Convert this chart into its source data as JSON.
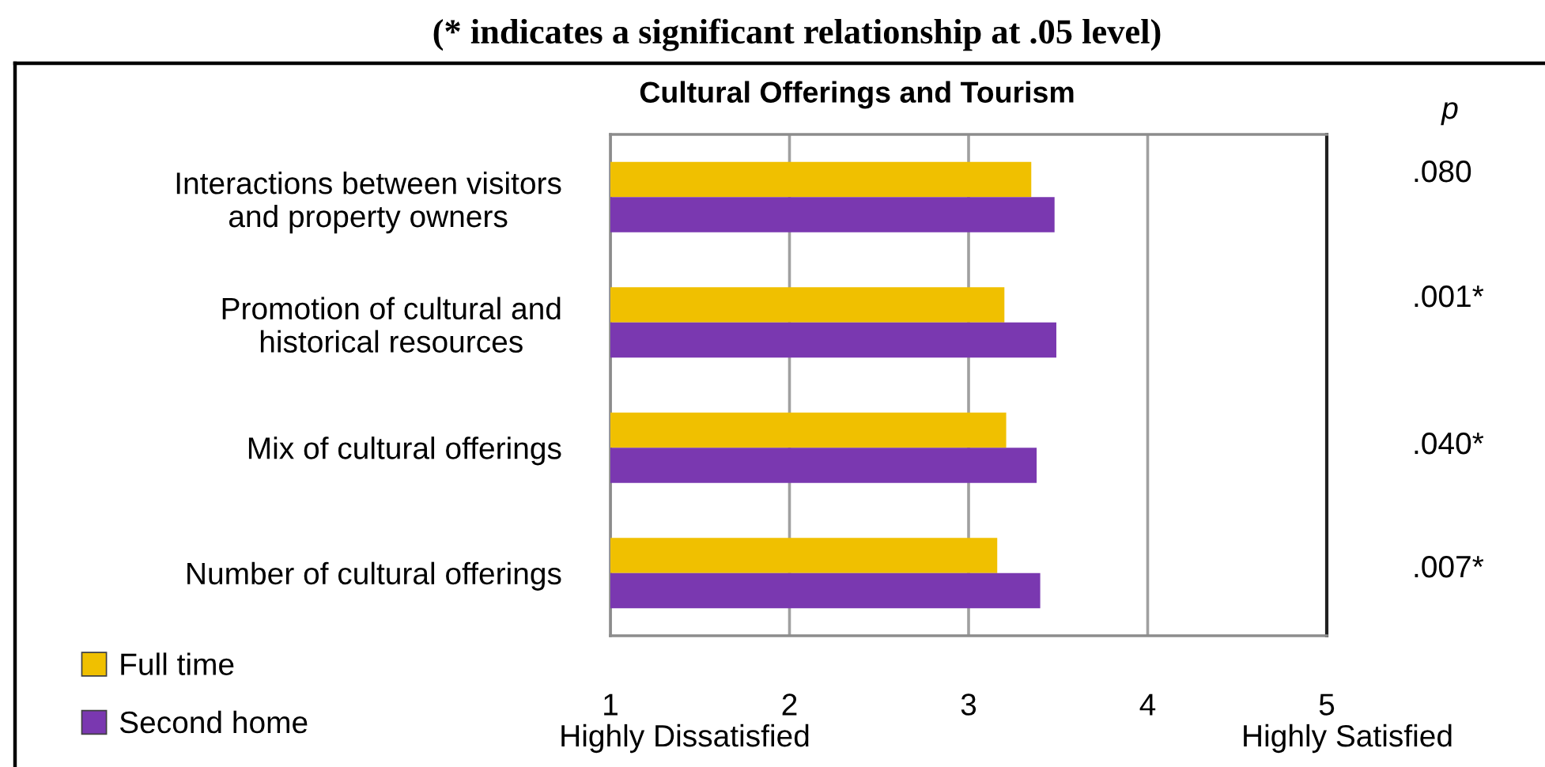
{
  "chart_data": {
    "type": "bar",
    "orientation": "horizontal",
    "title": "Cultural Offerings and Tourism",
    "categories": [
      "Interactions between visitors\nand property owners",
      "Promotion of cultural and\nhistorical resources",
      "Mix of cultural offerings",
      "Number of cultural offerings"
    ],
    "series": [
      {
        "name": "Full time",
        "color": "#f0c000",
        "values": [
          3.35,
          3.2,
          3.21,
          3.16
        ]
      },
      {
        "name": "Second home",
        "color": "#7a38b0",
        "values": [
          3.48,
          3.49,
          3.38,
          3.4
        ]
      }
    ],
    "xlim": [
      1,
      5
    ],
    "xticks": [
      1,
      2,
      3,
      4,
      5
    ],
    "grid": "x",
    "legend": "bottom left",
    "annotations": [
      "(* indicates a significant relationship at .05 level)",
      "p",
      ".080",
      ".001*",
      ".040*",
      ".007*",
      "Highly Dissatisfied",
      "Highly Satisfied"
    ]
  }
}
